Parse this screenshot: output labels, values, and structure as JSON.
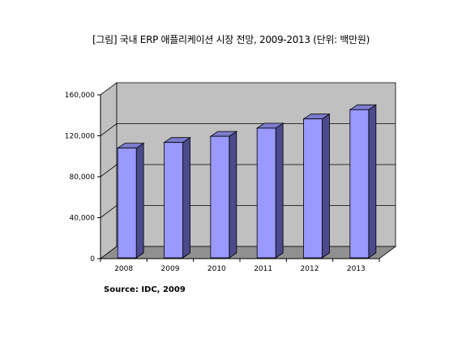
{
  "chart_data": {
    "type": "bar",
    "title": "[그림] 국내 ERP 애플리케이션 시장 전망, 2009-2013 (단위: 백만원)",
    "categories": [
      "2008",
      "2009",
      "2010",
      "2011",
      "2012",
      "2013"
    ],
    "series": [
      {
        "values": [
          108000,
          113500,
          119500,
          127500,
          136500,
          145500
        ]
      }
    ],
    "ylim": [
      0,
      160000
    ],
    "yticks": [
      "0",
      "40,000",
      "80,000",
      "120,000",
      "160,000"
    ],
    "ytick_values": [
      0,
      40000,
      80000,
      120000,
      160000
    ],
    "xlabel": "",
    "ylabel": "",
    "grid": true,
    "chart_style": "3d-column",
    "colors": {
      "bar_front": "#9999FF",
      "bar_side": "#4A4A8C",
      "bar_top": "#7C7CCF",
      "wall": "#C0C0C0",
      "floor": "#909090",
      "gridline": "#000000"
    },
    "source": "Source: IDC, 2009"
  }
}
